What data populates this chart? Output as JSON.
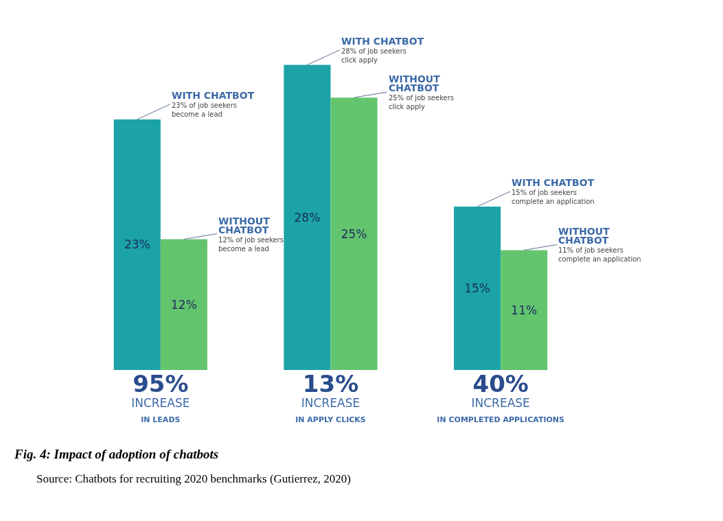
{
  "chart_data": {
    "type": "bar",
    "title": "Fig. 4: Impact of adoption of chatbots",
    "categories": [
      "95% INCREASE IN LEADS",
      "13% INCREASE IN APPLY CLICKS",
      "40% INCREASE IN COMPLETED APPLICATIONS"
    ],
    "series": [
      {
        "name": "WITH CHATBOT",
        "color": "#1ba3a8",
        "values": [
          23,
          28,
          15
        ],
        "value_labels": [
          "23%",
          "28%",
          "15%"
        ]
      },
      {
        "name": "WITHOUT CHATBOT",
        "color": "#63c46e",
        "values": [
          12,
          25,
          11
        ],
        "value_labels": [
          "12%",
          "25%",
          "11%"
        ]
      }
    ],
    "annotations": [
      "23% of job seekers become a lead",
      "12% of job seekers become a lead",
      "28% of job seekers click apply",
      "25% of job seekers click apply",
      "15% of job seekers complete an application",
      "11% of job seekers complete an application",
      "Source: Chatbots for recruiting 2020 benchmarks (Gutierrez, 2020)"
    ],
    "legend": false,
    "grid": false
  }
}
